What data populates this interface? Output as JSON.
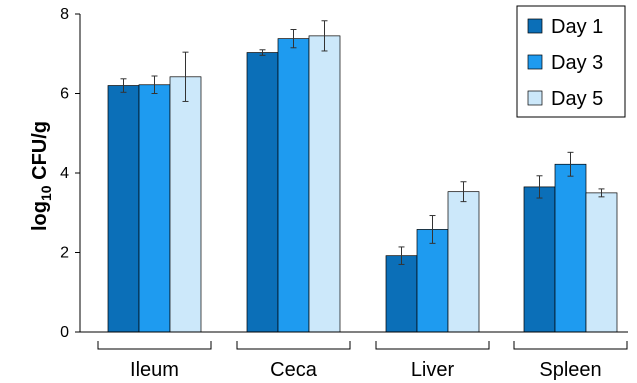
{
  "chart_data": {
    "type": "bar",
    "title": "",
    "xlabel": "",
    "ylabel": {
      "prefix": "log",
      "subscript": "10",
      "suffix": " CFU/g"
    },
    "ylim": [
      0,
      8
    ],
    "yticks": [
      0,
      2,
      4,
      6,
      8
    ],
    "grid": false,
    "legend_position": "top-right",
    "categories": [
      "Ileum",
      "Ceca",
      "Liver",
      "Spleen"
    ],
    "series": [
      {
        "name": "Day 1",
        "color": "#0B6FB8",
        "values": [
          6.2,
          7.03,
          1.92,
          3.65
        ],
        "errors": [
          0.17,
          0.07,
          0.22,
          0.28
        ]
      },
      {
        "name": "Day 3",
        "color": "#1E9BF0",
        "values": [
          6.22,
          7.38,
          2.58,
          4.22
        ],
        "errors": [
          0.22,
          0.23,
          0.35,
          0.3
        ]
      },
      {
        "name": "Day 5",
        "color": "#CCE8FA",
        "values": [
          6.42,
          7.45,
          3.53,
          3.5
        ],
        "errors": [
          0.62,
          0.38,
          0.25,
          0.1
        ]
      }
    ]
  }
}
